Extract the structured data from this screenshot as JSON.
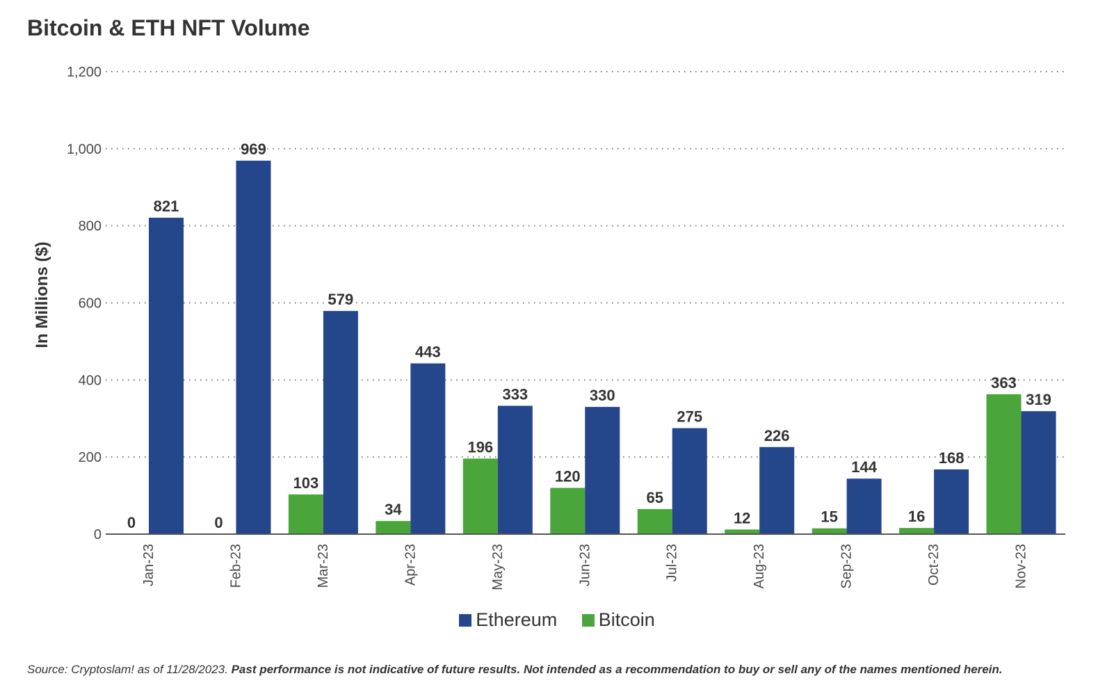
{
  "title": "Bitcoin & ETH NFT Volume",
  "chart_data": {
    "type": "bar",
    "title": "Bitcoin & ETH NFT Volume",
    "xlabel": "",
    "ylabel": "In Millions ($)",
    "ylim": [
      0,
      1200
    ],
    "yticks": [
      0,
      200,
      400,
      600,
      800,
      1000,
      1200
    ],
    "ytick_labels": [
      "0",
      "200",
      "400",
      "600",
      "800",
      "1,000",
      "1,200"
    ],
    "grid": true,
    "legend_position": "bottom-center",
    "categories": [
      "Jan-23",
      "Feb-23",
      "Mar-23",
      "Apr-23",
      "May-23",
      "Jun-23",
      "Jul-23",
      "Aug-23",
      "Sep-23",
      "Oct-23",
      "Nov-23"
    ],
    "series": [
      {
        "name": "Bitcoin",
        "color": "#4aa63a",
        "values": [
          0,
          0,
          103,
          34,
          196,
          120,
          65,
          12,
          15,
          16,
          363
        ]
      },
      {
        "name": "Ethereum",
        "color": "#24468b",
        "values": [
          821,
          969,
          579,
          443,
          333,
          330,
          275,
          226,
          144,
          168,
          319
        ]
      }
    ]
  },
  "legend": {
    "ethereum_label": "Ethereum",
    "bitcoin_label": "Bitcoin",
    "ethereum_color": "#24468b",
    "bitcoin_color": "#4aa63a"
  },
  "source": {
    "prefix": "Source: Cryptoslam! as of 11/28/2023.",
    "disclaimer": "Past performance is not indicative of future results. Not intended as a recommendation to buy or sell any of the names mentioned herein."
  }
}
